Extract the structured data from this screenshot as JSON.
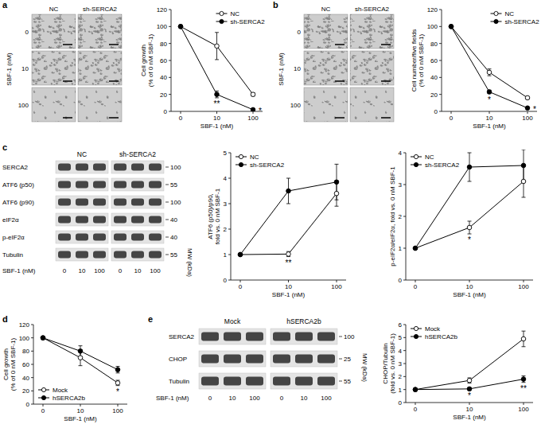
{
  "panel_labels": [
    "a",
    "b",
    "c",
    "d",
    "e"
  ],
  "micrographs": [
    {
      "columns": [
        "NC",
        "sh-SERCA2"
      ],
      "rows": [
        "0",
        "10",
        "100"
      ],
      "row_title": "SBF-1 (nM)"
    },
    {
      "columns": [
        "NC",
        "sh-SERCA2"
      ],
      "rows": [
        "0",
        "10",
        "100"
      ],
      "row_title": "SBF-1 (nM)"
    }
  ],
  "blots": [
    {
      "groups": [
        "NC",
        "sh-SERCA2"
      ],
      "rows": [
        {
          "label": "SERCA2",
          "mw": 100
        },
        {
          "label": "ATF6 (p50)",
          "mw": 55
        },
        {
          "label": "ATF6 (p90)",
          "mw": 100
        },
        {
          "label": "eIF2α",
          "mw": 40
        },
        {
          "label": "p-eIF2α",
          "mw": 40
        },
        {
          "label": "Tubulin",
          "mw": 55
        }
      ],
      "lanes": [
        "0",
        "10",
        "100",
        "0",
        "10",
        "100"
      ],
      "lane_title": "SBF-1 (nM)",
      "mw_title": "MW (kDa)"
    },
    {
      "groups": [
        "Mock",
        "hSERCA2b"
      ],
      "rows": [
        {
          "label": "SERCA2",
          "mw": 100
        },
        {
          "label": "CHOP",
          "mw": 25
        },
        {
          "label": "Tubulin",
          "mw": 55
        }
      ],
      "lanes": [
        "0",
        "10",
        "100",
        "0",
        "10",
        "100"
      ],
      "lane_title": "SBF-1 (nM)",
      "mw_title": "MW (kDa)"
    }
  ],
  "chart_data": [
    {
      "type": "line",
      "categories": [
        "0",
        "10",
        "100"
      ],
      "xlabel": "SBF-1 (nM)",
      "ylabel": "Cell growth (% of 0 nM SBF-1)",
      "ylim": [
        0,
        120
      ],
      "yticks": [
        0,
        20,
        40,
        60,
        80,
        100,
        120
      ],
      "grid": false,
      "legend": "upper right",
      "series": [
        {
          "name": "NC",
          "color": "#000000",
          "marker": "circle-open",
          "line_style": "solid",
          "values": [
            100,
            77,
            20
          ],
          "errors": [
            0,
            16,
            2
          ]
        },
        {
          "name": "sh-SERCA2",
          "color": "#000000",
          "marker": "circle",
          "line_style": "solid",
          "values": [
            100,
            20,
            2
          ],
          "errors": [
            0,
            4,
            1
          ]
        }
      ],
      "annotations": [
        {
          "category": "10",
          "text": "**"
        },
        {
          "category": "100",
          "text": "*"
        }
      ]
    },
    {
      "type": "line",
      "categories": [
        "0",
        "10",
        "100"
      ],
      "xlabel": "SBF-1 (nM)",
      "ylabel": "Cell number/five fields (% of 0 nM SBF-1)",
      "ylim": [
        0,
        120
      ],
      "yticks": [
        0,
        20,
        40,
        60,
        80,
        100,
        120
      ],
      "grid": false,
      "legend": "upper right",
      "series": [
        {
          "name": "NC",
          "color": "#000000",
          "marker": "circle-open",
          "line_style": "solid",
          "values": [
            100,
            46,
            16
          ],
          "errors": [
            0,
            4,
            1.5
          ]
        },
        {
          "name": "sh-SERCA2",
          "color": "#000000",
          "marker": "circle",
          "line_style": "solid",
          "values": [
            100,
            23,
            4
          ],
          "errors": [
            0,
            2,
            1
          ]
        }
      ],
      "annotations": [
        {
          "category": "10",
          "text": "*"
        },
        {
          "category": "100",
          "text": "*"
        }
      ]
    },
    {
      "type": "line",
      "categories": [
        "0",
        "10",
        "100"
      ],
      "xlabel": "SBF-1 (nM)",
      "ylabel": "ATF6 (p50)/p90, fold vs. 0 nM SBF-1",
      "ylim": [
        0,
        5
      ],
      "yticks": [
        0,
        1,
        2,
        3,
        4,
        5
      ],
      "grid": false,
      "legend": "upper left",
      "series": [
        {
          "name": "NC",
          "color": "#000000",
          "marker": "circle-open",
          "line_style": "solid",
          "values": [
            1,
            1.02,
            3.4
          ],
          "errors": [
            0,
            0.1,
            0.5
          ]
        },
        {
          "name": "sh-SERCA2",
          "color": "#000000",
          "marker": "circle",
          "line_style": "solid",
          "values": [
            1,
            3.5,
            3.85
          ],
          "errors": [
            0,
            0.5,
            0.7
          ]
        }
      ],
      "annotations": [
        {
          "category": "10",
          "text": "**"
        }
      ]
    },
    {
      "type": "line",
      "categories": [
        "0",
        "10",
        "100"
      ],
      "xlabel": "SBF-1 (nM)",
      "ylabel": "p-eIF2α/eIF2α, fold vs. 0 nM SBF-1",
      "ylim": [
        0,
        4
      ],
      "yticks": [
        0,
        1,
        2,
        3,
        4
      ],
      "grid": false,
      "legend": "upper left",
      "series": [
        {
          "name": "NC",
          "color": "#000000",
          "marker": "circle-open",
          "line_style": "solid",
          "values": [
            1,
            1.65,
            3.1
          ],
          "errors": [
            0,
            0.2,
            0.5
          ]
        },
        {
          "name": "sh-SERCA2",
          "color": "#000000",
          "marker": "circle",
          "line_style": "solid",
          "values": [
            1,
            3.55,
            3.6
          ],
          "errors": [
            0,
            0.45,
            0.5
          ]
        }
      ],
      "annotations": [
        {
          "category": "10",
          "text": "*"
        }
      ]
    },
    {
      "type": "line",
      "categories": [
        "0",
        "10",
        "100"
      ],
      "xlabel": "SBF-1 (nM)",
      "ylabel": "Cell growth (% of 0 nM SBF-1)",
      "ylim": [
        0,
        120
      ],
      "yticks": [
        0,
        20,
        40,
        60,
        80,
        100,
        120
      ],
      "grid": false,
      "legend": "lower left",
      "series": [
        {
          "name": "Mock",
          "color": "#000000",
          "marker": "circle-open",
          "line_style": "solid",
          "values": [
            100,
            70,
            32
          ],
          "errors": [
            0,
            12,
            4
          ]
        },
        {
          "name": "hSERCA2b",
          "color": "#000000",
          "marker": "circle",
          "line_style": "solid",
          "values": [
            100,
            80,
            52
          ],
          "errors": [
            0,
            8,
            5
          ]
        }
      ],
      "annotations": [
        {
          "category": "100",
          "text": "*"
        }
      ]
    },
    {
      "type": "line",
      "categories": [
        "0",
        "10",
        "100"
      ],
      "xlabel": "SBF-1 (nM)",
      "ylabel": "CHOP/Tubulin (fold vs. 0 nM SBF-1)",
      "ylim": [
        0,
        6
      ],
      "yticks": [
        0,
        1,
        2,
        3,
        4,
        5,
        6
      ],
      "grid": false,
      "legend": "upper left",
      "series": [
        {
          "name": "Mock",
          "color": "#000000",
          "marker": "circle-open",
          "line_style": "solid",
          "values": [
            1,
            1.7,
            4.9
          ],
          "errors": [
            0,
            0.2,
            0.6
          ]
        },
        {
          "name": "hSERCA2b",
          "color": "#000000",
          "marker": "circle",
          "line_style": "solid",
          "values": [
            1,
            1.05,
            1.8
          ],
          "errors": [
            0,
            0.1,
            0.25
          ]
        }
      ],
      "annotations": [
        {
          "category": "10",
          "text": "*"
        },
        {
          "category": "100",
          "text": "**"
        }
      ]
    }
  ]
}
